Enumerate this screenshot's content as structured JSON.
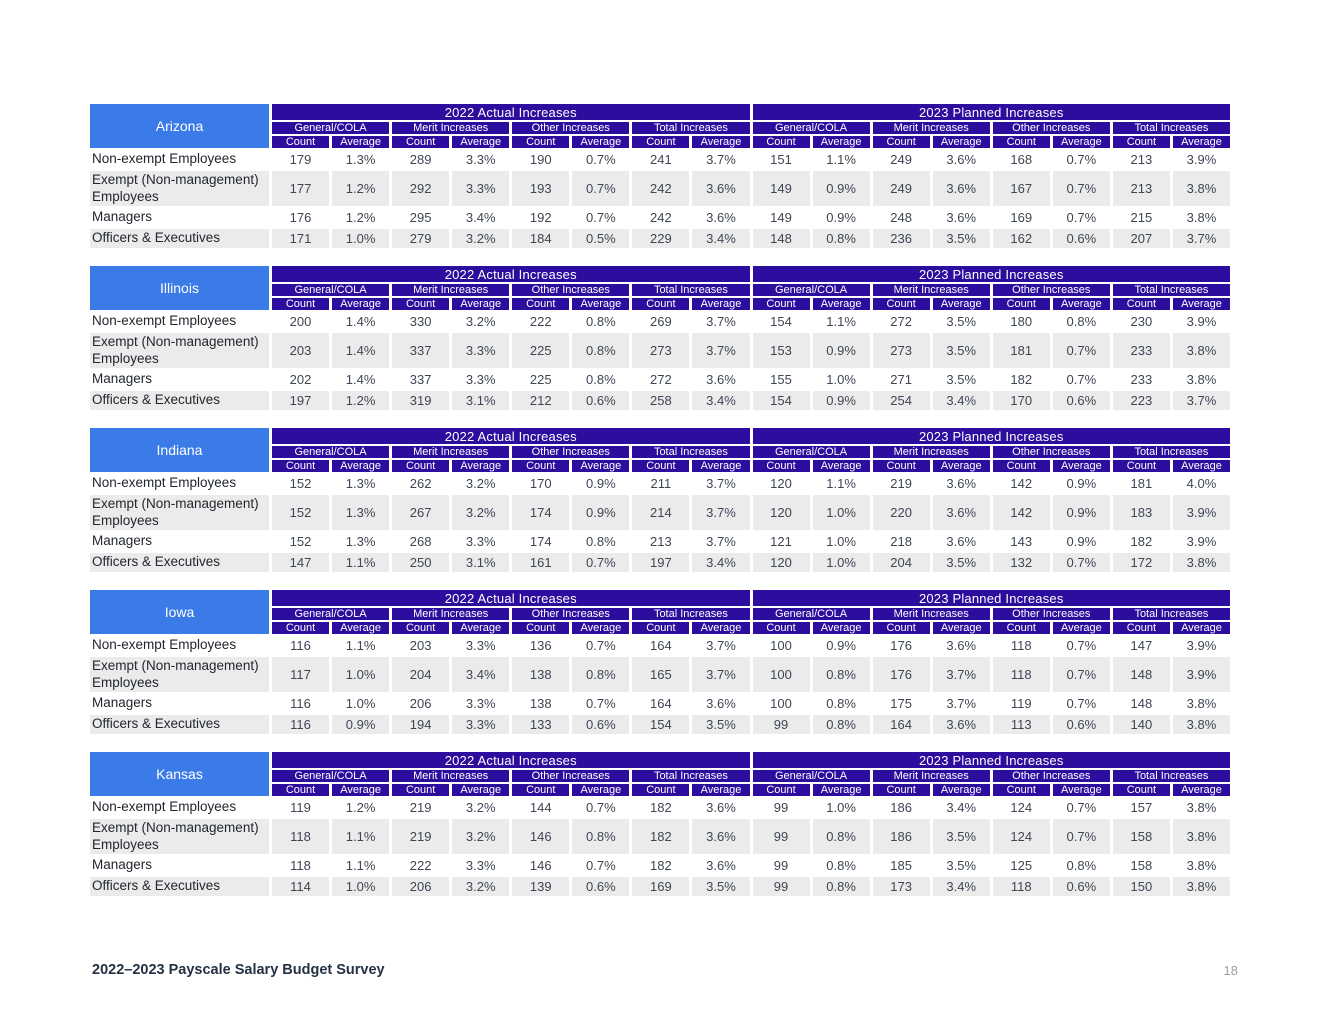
{
  "page": {
    "footer_title": "2022–2023 Payscale Salary Budget Survey",
    "page_number": "18"
  },
  "colors": {
    "header_bg": "#2D0D9E",
    "state_bg": "#3B7BE8",
    "row_alt_bg": "#EBEBEC",
    "data_text": "#3E4653"
  },
  "table_template": {
    "year_headers": [
      "2022 Actual Increases",
      "2023 Planned Increases"
    ],
    "group_headers": [
      "General/COLA",
      "Merit Increases",
      "Other Increases",
      "Total Increases"
    ],
    "subheaders": [
      "Count",
      "Average"
    ]
  },
  "tables": [
    {
      "state": "Arizona",
      "rows": [
        {
          "label": "Non-exempt Employees",
          "values": [
            "179",
            "1.3%",
            "289",
            "3.3%",
            "190",
            "0.7%",
            "241",
            "3.7%",
            "151",
            "1.1%",
            "249",
            "3.6%",
            "168",
            "0.7%",
            "213",
            "3.9%"
          ]
        },
        {
          "label": "Exempt (Non-management) Employees",
          "values": [
            "177",
            "1.2%",
            "292",
            "3.3%",
            "193",
            "0.7%",
            "242",
            "3.6%",
            "149",
            "0.9%",
            "249",
            "3.6%",
            "167",
            "0.7%",
            "213",
            "3.8%"
          ]
        },
        {
          "label": "Managers",
          "values": [
            "176",
            "1.2%",
            "295",
            "3.4%",
            "192",
            "0.7%",
            "242",
            "3.6%",
            "149",
            "0.9%",
            "248",
            "3.6%",
            "169",
            "0.7%",
            "215",
            "3.8%"
          ]
        },
        {
          "label": "Officers & Executives",
          "values": [
            "171",
            "1.0%",
            "279",
            "3.2%",
            "184",
            "0.5%",
            "229",
            "3.4%",
            "148",
            "0.8%",
            "236",
            "3.5%",
            "162",
            "0.6%",
            "207",
            "3.7%"
          ]
        }
      ]
    },
    {
      "state": "Illinois",
      "rows": [
        {
          "label": "Non-exempt Employees",
          "values": [
            "200",
            "1.4%",
            "330",
            "3.2%",
            "222",
            "0.8%",
            "269",
            "3.7%",
            "154",
            "1.1%",
            "272",
            "3.5%",
            "180",
            "0.8%",
            "230",
            "3.9%"
          ]
        },
        {
          "label": "Exempt (Non-management) Employees",
          "values": [
            "203",
            "1.4%",
            "337",
            "3.3%",
            "225",
            "0.8%",
            "273",
            "3.7%",
            "153",
            "0.9%",
            "273",
            "3.5%",
            "181",
            "0.7%",
            "233",
            "3.8%"
          ]
        },
        {
          "label": "Managers",
          "values": [
            "202",
            "1.4%",
            "337",
            "3.3%",
            "225",
            "0.8%",
            "272",
            "3.6%",
            "155",
            "1.0%",
            "271",
            "3.5%",
            "182",
            "0.7%",
            "233",
            "3.8%"
          ]
        },
        {
          "label": "Officers & Executives",
          "values": [
            "197",
            "1.2%",
            "319",
            "3.1%",
            "212",
            "0.6%",
            "258",
            "3.4%",
            "154",
            "0.9%",
            "254",
            "3.4%",
            "170",
            "0.6%",
            "223",
            "3.7%"
          ]
        }
      ]
    },
    {
      "state": "Indiana",
      "rows": [
        {
          "label": "Non-exempt Employees",
          "values": [
            "152",
            "1.3%",
            "262",
            "3.2%",
            "170",
            "0.9%",
            "211",
            "3.7%",
            "120",
            "1.1%",
            "219",
            "3.6%",
            "142",
            "0.9%",
            "181",
            "4.0%"
          ]
        },
        {
          "label": "Exempt (Non-management) Employees",
          "values": [
            "152",
            "1.3%",
            "267",
            "3.2%",
            "174",
            "0.9%",
            "214",
            "3.7%",
            "120",
            "1.0%",
            "220",
            "3.6%",
            "142",
            "0.9%",
            "183",
            "3.9%"
          ]
        },
        {
          "label": "Managers",
          "values": [
            "152",
            "1.3%",
            "268",
            "3.3%",
            "174",
            "0.8%",
            "213",
            "3.7%",
            "121",
            "1.0%",
            "218",
            "3.6%",
            "143",
            "0.9%",
            "182",
            "3.9%"
          ]
        },
        {
          "label": "Officers & Executives",
          "values": [
            "147",
            "1.1%",
            "250",
            "3.1%",
            "161",
            "0.7%",
            "197",
            "3.4%",
            "120",
            "1.0%",
            "204",
            "3.5%",
            "132",
            "0.7%",
            "172",
            "3.8%"
          ]
        }
      ]
    },
    {
      "state": "Iowa",
      "rows": [
        {
          "label": "Non-exempt Employees",
          "values": [
            "116",
            "1.1%",
            "203",
            "3.3%",
            "136",
            "0.7%",
            "164",
            "3.7%",
            "100",
            "0.9%",
            "176",
            "3.6%",
            "118",
            "0.7%",
            "147",
            "3.9%"
          ]
        },
        {
          "label": "Exempt (Non-management) Employees",
          "values": [
            "117",
            "1.0%",
            "204",
            "3.4%",
            "138",
            "0.8%",
            "165",
            "3.7%",
            "100",
            "0.8%",
            "176",
            "3.7%",
            "118",
            "0.7%",
            "148",
            "3.9%"
          ]
        },
        {
          "label": "Managers",
          "values": [
            "116",
            "1.0%",
            "206",
            "3.3%",
            "138",
            "0.7%",
            "164",
            "3.6%",
            "100",
            "0.8%",
            "175",
            "3.7%",
            "119",
            "0.7%",
            "148",
            "3.8%"
          ]
        },
        {
          "label": "Officers & Executives",
          "values": [
            "116",
            "0.9%",
            "194",
            "3.3%",
            "133",
            "0.6%",
            "154",
            "3.5%",
            "99",
            "0.8%",
            "164",
            "3.6%",
            "113",
            "0.6%",
            "140",
            "3.8%"
          ]
        }
      ]
    },
    {
      "state": "Kansas",
      "rows": [
        {
          "label": "Non-exempt Employees",
          "values": [
            "119",
            "1.2%",
            "219",
            "3.2%",
            "144",
            "0.7%",
            "182",
            "3.6%",
            "99",
            "1.0%",
            "186",
            "3.4%",
            "124",
            "0.7%",
            "157",
            "3.8%"
          ]
        },
        {
          "label": "Exempt (Non-management) Employees",
          "values": [
            "118",
            "1.1%",
            "219",
            "3.2%",
            "146",
            "0.8%",
            "182",
            "3.6%",
            "99",
            "0.8%",
            "186",
            "3.5%",
            "124",
            "0.7%",
            "158",
            "3.8%"
          ]
        },
        {
          "label": "Managers",
          "values": [
            "118",
            "1.1%",
            "222",
            "3.3%",
            "146",
            "0.7%",
            "182",
            "3.6%",
            "99",
            "0.8%",
            "185",
            "3.5%",
            "125",
            "0.8%",
            "158",
            "3.8%"
          ]
        },
        {
          "label": "Officers & Executives",
          "values": [
            "114",
            "1.0%",
            "206",
            "3.2%",
            "139",
            "0.6%",
            "169",
            "3.5%",
            "99",
            "0.8%",
            "173",
            "3.4%",
            "118",
            "0.6%",
            "150",
            "3.8%"
          ]
        }
      ]
    }
  ]
}
